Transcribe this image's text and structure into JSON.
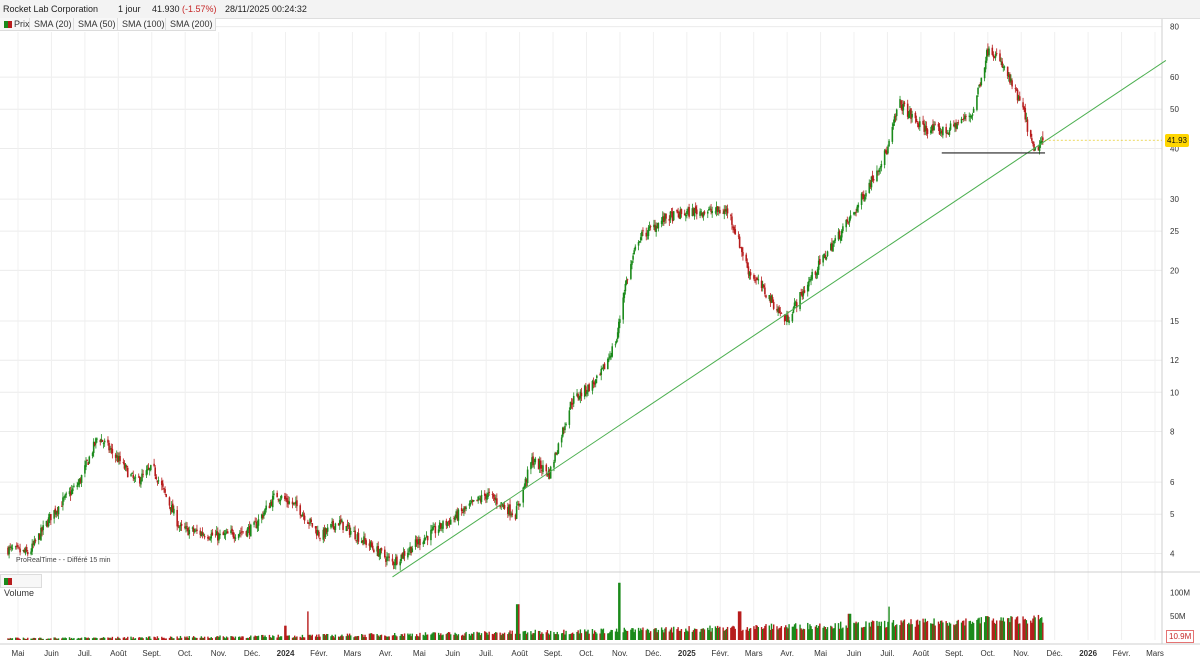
{
  "header": {
    "name": "Rocket Lab Corporation",
    "period": "1 jour",
    "last": "41.930",
    "change": "(-1.57%)",
    "datetime": "28/11/2025 00:24:32"
  },
  "tabs": [
    {
      "label": "Prix",
      "icon": "candle-icon"
    },
    {
      "label": "SMA (20)"
    },
    {
      "label": "SMA (50)"
    },
    {
      "label": "SMA (100)"
    },
    {
      "label": "SMA (200)"
    }
  ],
  "volume_label": "Volume",
  "source": "ProRealTime -     - Différé 15 min",
  "colors": {
    "up": "#1b8a1b",
    "down": "#b71c1c",
    "trendline": "#4caf50",
    "support": "#222222",
    "price_tag": "#ffd600"
  },
  "chart_data": {
    "type": "candlestick",
    "scale": "log",
    "ylim": [
      3.6,
      84
    ],
    "last_price_label": "41.93",
    "last_volume_label": "10.9M",
    "y_ticks": [
      "80",
      "60",
      "50",
      "40",
      "30",
      "25",
      "20",
      "15",
      "12",
      "10",
      "8",
      "6",
      "5",
      "4"
    ],
    "volume_ticks": [
      "100M",
      "50M",
      "0"
    ],
    "x_labels": [
      "Mai",
      "Juin",
      "Juil.",
      "Août",
      "Sept.",
      "Oct.",
      "Nov.",
      "Déc.",
      "2024",
      "Févr.",
      "Mars",
      "Avr.",
      "Mai",
      "Juin",
      "Juil.",
      "Août",
      "Sept.",
      "Oct.",
      "Nov.",
      "Déc.",
      "2025",
      "Févr.",
      "Mars",
      "Avr.",
      "Mai",
      "Juin",
      "Juil.",
      "Août",
      "Sept.",
      "Oct.",
      "Nov.",
      "Déc.",
      "2026",
      "Févr.",
      "Mars"
    ],
    "x_range": [
      "2023-05",
      "2026-03"
    ],
    "price_path": [
      {
        "date": "2023-05-01",
        "close": 4.1
      },
      {
        "date": "2023-05-20",
        "close": 4.0
      },
      {
        "date": "2023-06-10",
        "close": 5.0
      },
      {
        "date": "2023-07-05",
        "close": 6.0
      },
      {
        "date": "2023-07-22",
        "close": 7.8
      },
      {
        "date": "2023-08-10",
        "close": 6.8
      },
      {
        "date": "2023-08-25",
        "close": 6.0
      },
      {
        "date": "2023-09-10",
        "close": 6.5
      },
      {
        "date": "2023-09-25",
        "close": 5.3
      },
      {
        "date": "2023-10-05",
        "close": 4.6
      },
      {
        "date": "2023-11-10",
        "close": 4.4
      },
      {
        "date": "2023-12-10",
        "close": 4.6
      },
      {
        "date": "2023-12-31",
        "close": 5.6
      },
      {
        "date": "2024-01-20",
        "close": 5.2
      },
      {
        "date": "2024-02-10",
        "close": 4.4
      },
      {
        "date": "2024-02-25",
        "close": 4.8
      },
      {
        "date": "2024-03-25",
        "close": 4.2
      },
      {
        "date": "2024-04-15",
        "close": 3.8
      },
      {
        "date": "2024-05-10",
        "close": 4.3
      },
      {
        "date": "2024-06-10",
        "close": 4.9
      },
      {
        "date": "2024-07-10",
        "close": 5.6
      },
      {
        "date": "2024-08-05",
        "close": 5.0
      },
      {
        "date": "2024-08-20",
        "close": 6.8
      },
      {
        "date": "2024-09-05",
        "close": 6.3
      },
      {
        "date": "2024-09-25",
        "close": 9.5
      },
      {
        "date": "2024-10-20",
        "close": 10.8
      },
      {
        "date": "2024-11-05",
        "close": 13.5
      },
      {
        "date": "2024-11-12",
        "close": 18.0
      },
      {
        "date": "2024-11-25",
        "close": 24.0
      },
      {
        "date": "2024-12-20",
        "close": 27.0
      },
      {
        "date": "2025-01-15",
        "close": 28.0
      },
      {
        "date": "2025-02-15",
        "close": 28.0
      },
      {
        "date": "2025-03-05",
        "close": 20.0
      },
      {
        "date": "2025-03-25",
        "close": 17.0
      },
      {
        "date": "2025-04-08",
        "close": 15.0
      },
      {
        "date": "2025-05-10",
        "close": 21.0
      },
      {
        "date": "2025-06-10",
        "close": 28.0
      },
      {
        "date": "2025-07-10",
        "close": 40.0
      },
      {
        "date": "2025-07-20",
        "close": 52.0
      },
      {
        "date": "2025-08-10",
        "close": 45.0
      },
      {
        "date": "2025-09-01",
        "close": 44.0
      },
      {
        "date": "2025-09-25",
        "close": 49.0
      },
      {
        "date": "2025-10-10",
        "close": 72.0
      },
      {
        "date": "2025-10-25",
        "close": 62.0
      },
      {
        "date": "2025-11-10",
        "close": 50.0
      },
      {
        "date": "2025-11-20",
        "close": 39.0
      },
      {
        "date": "2025-11-28",
        "close": 41.93
      }
    ],
    "volume_peaks": [
      {
        "date": "2024-01-08",
        "value": 30
      },
      {
        "date": "2024-01-28",
        "value": 60
      },
      {
        "date": "2024-08-07",
        "value": 75
      },
      {
        "date": "2024-11-08",
        "value": 120
      },
      {
        "date": "2025-02-25",
        "value": 60
      },
      {
        "date": "2025-06-05",
        "value": 55
      },
      {
        "date": "2025-07-12",
        "value": 70
      },
      {
        "date": "2025-10-08",
        "value": 50
      }
    ],
    "trendline": {
      "from": {
        "date": "2024-04-15",
        "value": 3.5
      },
      "to": {
        "date": "2026-03-20",
        "value": 66
      }
    },
    "support": {
      "from": {
        "date": "2025-08-28",
        "value": 39
      },
      "to": {
        "date": "2025-11-30",
        "value": 39
      }
    }
  }
}
